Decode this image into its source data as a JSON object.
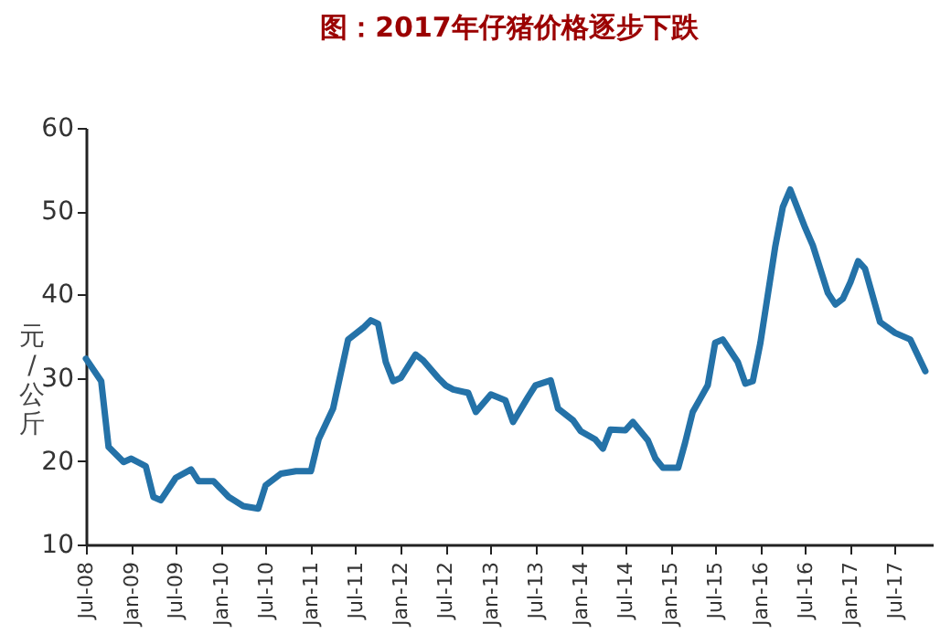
{
  "chart_data": {
    "type": "line",
    "title": "图：2017年仔猪价格逐步下跌",
    "ylabel": "元/公斤",
    "x": [
      "2008-07",
      "2008-09",
      "2008-10",
      "2008-12",
      "2009-01",
      "2009-03",
      "2009-04",
      "2009-05",
      "2009-07",
      "2009-09",
      "2009-10",
      "2009-12",
      "2010-02",
      "2010-04",
      "2010-06",
      "2010-07",
      "2010-09",
      "2010-11",
      "2011-01",
      "2011-02",
      "2011-04",
      "2011-06",
      "2011-08",
      "2011-09",
      "2011-10",
      "2011-11",
      "2011-12",
      "2012-01",
      "2012-03",
      "2012-04",
      "2012-06",
      "2012-07",
      "2012-08",
      "2012-10",
      "2012-11",
      "2013-01",
      "2013-03",
      "2013-04",
      "2013-06",
      "2013-07",
      "2013-09",
      "2013-10",
      "2013-12",
      "2014-01",
      "2014-03",
      "2014-04",
      "2014-05",
      "2014-07",
      "2014-08",
      "2014-10",
      "2014-11",
      "2014-12",
      "2015-02",
      "2015-03",
      "2015-04",
      "2015-06",
      "2015-07",
      "2015-08",
      "2015-10",
      "2015-11",
      "2015-12",
      "2016-01",
      "2016-03",
      "2016-04",
      "2016-05",
      "2016-07",
      "2016-08",
      "2016-10",
      "2016-11",
      "2016-12",
      "2017-01",
      "2017-02",
      "2017-03",
      "2017-05",
      "2017-07",
      "2017-09",
      "2017-11"
    ],
    "series": [
      {
        "color": "#2472a8",
        "values": [
          32.3,
          29.6,
          21.7,
          19.9,
          20.3,
          19.4,
          15.7,
          15.3,
          18.0,
          19.0,
          17.6,
          17.6,
          15.7,
          14.6,
          14.3,
          17.1,
          18.5,
          18.8,
          18.8,
          22.6,
          26.3,
          34.6,
          36.0,
          36.9,
          36.5,
          31.9,
          29.6,
          30.0,
          32.8,
          32.1,
          30.0,
          29.1,
          28.6,
          28.2,
          25.9,
          28.0,
          27.3,
          24.7,
          27.7,
          29.1,
          29.7,
          26.3,
          24.9,
          23.6,
          22.6,
          21.5,
          23.8,
          23.7,
          24.7,
          22.5,
          20.3,
          19.2,
          19.2,
          22.2,
          25.9,
          29.1,
          34.2,
          34.6,
          31.9,
          29.3,
          29.6,
          34.2,
          45.7,
          50.5,
          52.6,
          48.0,
          45.9,
          40.2,
          38.8,
          39.5,
          41.5,
          44.0,
          43.1,
          36.7,
          35.4,
          34.6,
          30.8
        ]
      }
    ],
    "xlim": [
      "2008-07",
      "2017-12"
    ],
    "xticks": [
      {
        "value": "2008-07",
        "label": "Jul-08"
      },
      {
        "value": "2009-01",
        "label": "Jan-09"
      },
      {
        "value": "2009-07",
        "label": "Jul-09"
      },
      {
        "value": "2010-01",
        "label": "Jan-10"
      },
      {
        "value": "2010-07",
        "label": "Jul-10"
      },
      {
        "value": "2011-01",
        "label": "Jan-11"
      },
      {
        "value": "2011-07",
        "label": "Jul-11"
      },
      {
        "value": "2012-01",
        "label": "Jan-12"
      },
      {
        "value": "2012-07",
        "label": "Jul-12"
      },
      {
        "value": "2013-01",
        "label": "Jan-13"
      },
      {
        "value": "2013-07",
        "label": "Jul-13"
      },
      {
        "value": "2014-01",
        "label": "Jan-14"
      },
      {
        "value": "2014-07",
        "label": "Jul-14"
      },
      {
        "value": "2015-01",
        "label": "Jan-15"
      },
      {
        "value": "2015-07",
        "label": "Jul-15"
      },
      {
        "value": "2016-01",
        "label": "Jan-16"
      },
      {
        "value": "2016-07",
        "label": "Jul-16"
      },
      {
        "value": "2017-01",
        "label": "Jan-17"
      },
      {
        "value": "2017-07",
        "label": "Jul-17"
      }
    ],
    "ylim": [
      10,
      60
    ],
    "yticks": [
      10,
      20,
      30,
      40,
      50,
      60
    ],
    "grid": false
  }
}
